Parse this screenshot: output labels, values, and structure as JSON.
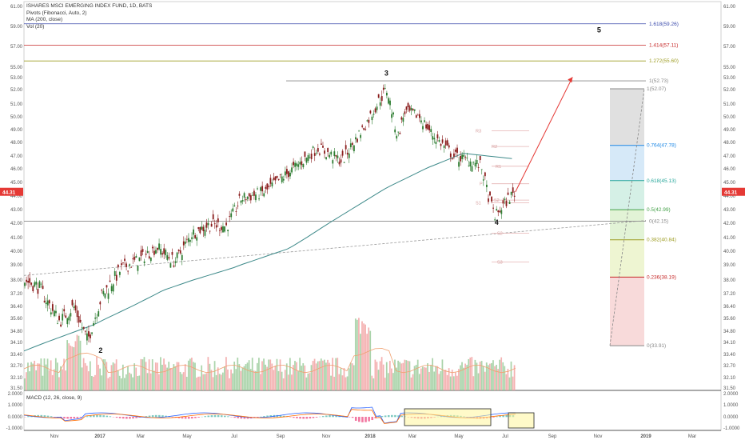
{
  "legend": {
    "title": "ISHARES MSCI EMERGING INDEX FUND, 1D, BATS",
    "pivots": "Pivots (Fibonacci, Auto, 2)",
    "ma": "MA (200, close)",
    "vol": "Vol (20)"
  },
  "colors": {
    "up": "#2e7d32",
    "down": "#8a1c1c",
    "ma": "#3e8a8a",
    "vol_up": "#9ccc9c",
    "vol_down": "#f2a5a5",
    "arrow": "#e53935",
    "price_tag": "#e53935"
  },
  "chart_data": {
    "type": "candlestick",
    "ylim": [
      31.5,
      61.0
    ],
    "y_ticks": [
      "31.50",
      "32.10",
      "32.70",
      "33.40",
      "34.10",
      "34.80",
      "35.60",
      "36.40",
      "37.20",
      "38.00",
      "39.00",
      "40.00",
      "41.00",
      "42.00",
      "43.00",
      "44.00",
      "45.00",
      "46.00",
      "47.00",
      "48.00",
      "49.00",
      "50.00",
      "51.00",
      "52.00",
      "53.00",
      "55.00",
      "57.00",
      "59.00",
      "61.00"
    ],
    "x_ticks": [
      "Nov",
      "2017",
      "Mar",
      "May",
      "Jul",
      "Sep",
      "Nov",
      "2018",
      "Mar",
      "May",
      "Jul",
      "Sep",
      "Nov",
      "2019",
      "Mar"
    ],
    "current_price": "44.31",
    "price_path": [
      [
        0,
        38.0
      ],
      [
        0.02,
        37.6
      ],
      [
        0.05,
        35.4
      ],
      [
        0.07,
        36.4
      ],
      [
        0.09,
        34.2
      ],
      [
        0.11,
        37.0
      ],
      [
        0.14,
        38.8
      ],
      [
        0.165,
        39.4
      ],
      [
        0.19,
        40.3
      ],
      [
        0.215,
        39.2
      ],
      [
        0.24,
        41.3
      ],
      [
        0.265,
        41.9
      ],
      [
        0.29,
        41.8
      ],
      [
        0.31,
        43.8
      ],
      [
        0.345,
        44.3
      ],
      [
        0.385,
        46.0
      ],
      [
        0.42,
        47.6
      ],
      [
        0.455,
        46.6
      ],
      [
        0.49,
        49.5
      ],
      [
        0.51,
        51.4
      ],
      [
        0.52,
        52.0
      ],
      [
        0.535,
        48.4
      ],
      [
        0.545,
        50.4
      ],
      [
        0.565,
        50.1
      ],
      [
        0.585,
        48.6
      ],
      [
        0.615,
        47.0
      ],
      [
        0.64,
        46.6
      ],
      [
        0.655,
        46.2
      ],
      [
        0.665,
        44.0
      ],
      [
        0.675,
        42.5
      ],
      [
        0.695,
        43.9
      ],
      [
        0.705,
        44.3
      ]
    ],
    "ma200_points": [
      [
        0,
        33.6
      ],
      [
        0.1,
        35.2
      ],
      [
        0.2,
        37.4
      ],
      [
        0.3,
        38.8
      ],
      [
        0.38,
        40.2
      ],
      [
        0.45,
        42.4
      ],
      [
        0.52,
        44.6
      ],
      [
        0.58,
        46.1
      ],
      [
        0.63,
        47.2
      ],
      [
        0.7,
        46.8
      ]
    ],
    "fib_extension": [
      {
        "label": "1.618(59.26)",
        "value": 59.26,
        "color": "#3949ab"
      },
      {
        "label": "1.414(57.11)",
        "value": 57.11,
        "color": "#c62828"
      },
      {
        "label": "1.272(55.60)",
        "value": 55.6,
        "color": "#9e9d24"
      },
      {
        "label": "1(52.73)",
        "value": 52.73,
        "color": "#888888"
      },
      {
        "label": "0(42.15)",
        "value": 42.15,
        "color": "#888888"
      }
    ],
    "fib_retracement": [
      {
        "label": "1(52.07)",
        "value": 52.07,
        "color": "#888888",
        "fill": "#e0e0e0"
      },
      {
        "label": "0.764(47.78)",
        "value": 47.78,
        "color": "#1e88e5",
        "fill": "#d6e9f8"
      },
      {
        "label": "0.618(45.13)",
        "value": 45.13,
        "color": "#26a69a",
        "fill": "#d5f0e6"
      },
      {
        "label": "0.5(42.99)",
        "value": 42.99,
        "color": "#43a047",
        "fill": "#e2f3d6"
      },
      {
        "label": "0.382(40.84)",
        "value": 40.84,
        "color": "#9e9d24",
        "fill": "#eef5d2"
      },
      {
        "label": "0.236(38.19)",
        "value": 38.19,
        "color": "#c62828",
        "fill": "#f8dada"
      },
      {
        "label": "0(33.91)",
        "value": 33.91,
        "color": "#888888",
        "fill": "#f8dada"
      }
    ],
    "pivots": [
      {
        "label": "R3",
        "value": 48.9
      },
      {
        "label": "R2",
        "value": 47.7
      },
      {
        "label": "R1",
        "value": 46.2
      },
      {
        "label": "P",
        "value": 44.9
      },
      {
        "label": "S2",
        "value": 43.7
      },
      {
        "label": "S1",
        "value": 43.5
      },
      {
        "label": "S2",
        "value": 41.3
      },
      {
        "label": "S3",
        "value": 39.2
      }
    ],
    "waves": [
      {
        "label": "2",
        "x": 0.11,
        "y": 33.5
      },
      {
        "label": "3",
        "x": 0.52,
        "y": 53.4
      },
      {
        "label": "4",
        "x": 0.678,
        "y": 41.9
      },
      {
        "label": "5",
        "x": 0.825,
        "y": 58.4
      }
    ],
    "macd": {
      "title": "MACD (12, 26, close, 9)",
      "ylim": [
        -1.0,
        2.0
      ],
      "y_ticks": [
        "2.0000",
        "1.0000",
        "0.0000",
        "-1.0000"
      ]
    }
  }
}
